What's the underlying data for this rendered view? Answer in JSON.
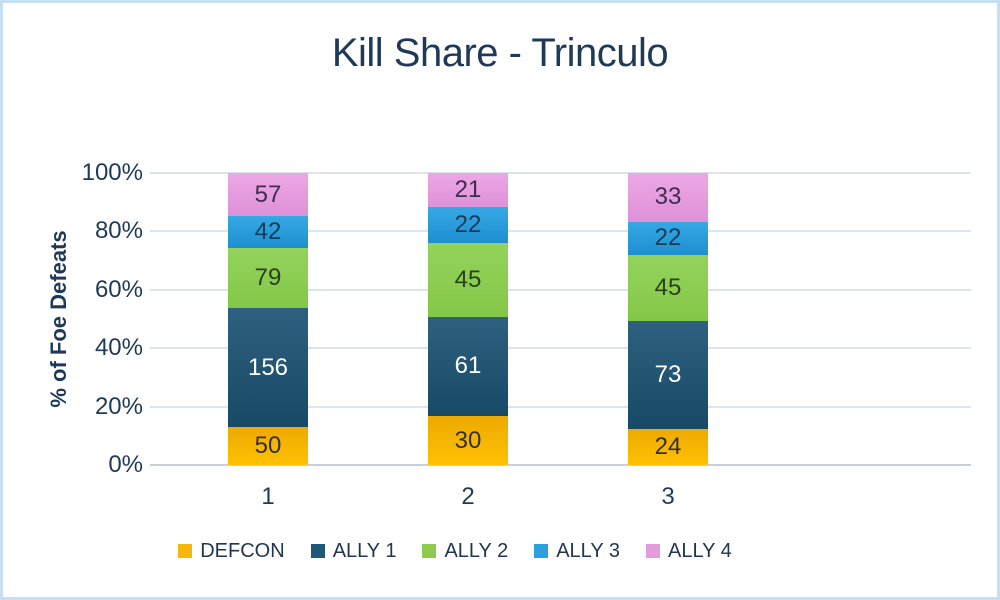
{
  "chart_data": {
    "type": "bar",
    "stacking": "percent",
    "title": "Kill Share - Trinculo",
    "ylabel": "% of Foe Defeats",
    "xlabel": "",
    "categories": [
      "1",
      "2",
      "3"
    ],
    "series": [
      {
        "name": "DEFCON",
        "values": [
          50,
          30,
          24
        ],
        "color": "#F7B60B",
        "gradient": [
          "#EDA900",
          "#FFC103"
        ],
        "label_color": "#33302A"
      },
      {
        "name": "ALLY 1",
        "values": [
          156,
          61,
          73
        ],
        "color": "#20587A",
        "gradient": [
          "#2F6080",
          "#174A66"
        ],
        "label_color": "#FFFFFF"
      },
      {
        "name": "ALLY 2",
        "values": [
          79,
          45,
          45
        ],
        "color": "#8CCB50",
        "gradient": [
          "#95D35C",
          "#83C748"
        ],
        "label_color": "#29411B"
      },
      {
        "name": "ALLY 3",
        "values": [
          42,
          22,
          22
        ],
        "color": "#2BA0DD",
        "gradient": [
          "#36A8E4",
          "#1E8FD0"
        ],
        "label_color": "#173B58"
      },
      {
        "name": "ALLY 4",
        "values": [
          57,
          21,
          33
        ],
        "color": "#E59CDE",
        "gradient": [
          "#EDA7E6",
          "#DD92D7"
        ],
        "label_color": "#422B50"
      }
    ],
    "yticks": [
      "0%",
      "20%",
      "40%",
      "60%",
      "80%",
      "100%"
    ],
    "ylim": [
      0,
      1
    ],
    "grid": true,
    "legend_position": "bottom",
    "colors": {
      "text": "#1F3A58",
      "gridline": "#DCE5EE",
      "axis_line": "#C6CFDA",
      "page_border": "#C7DFF2",
      "background": "#FFFFFF"
    }
  }
}
